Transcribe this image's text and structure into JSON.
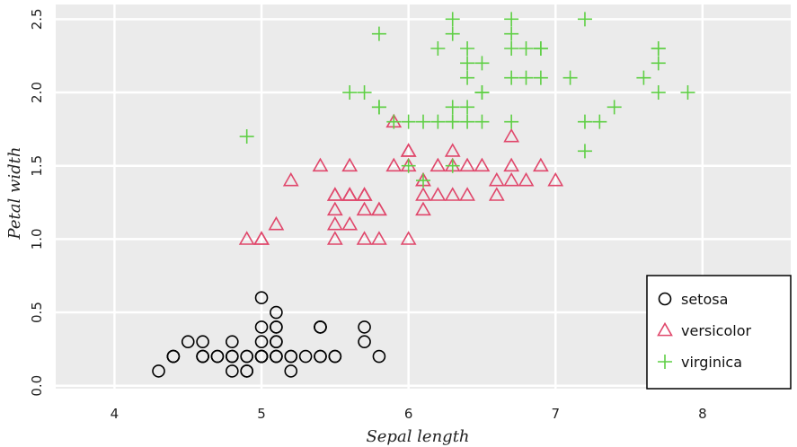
{
  "chart_data": {
    "type": "scatter",
    "title": "",
    "xlabel": "Sepal length",
    "ylabel": "Petal width",
    "xlim": [
      3.6,
      8.6
    ],
    "ylim": [
      -0.02,
      2.6
    ],
    "xticks": [
      4,
      5,
      6,
      7,
      8
    ],
    "yticks": [
      0.0,
      0.5,
      1.0,
      1.5,
      2.0,
      2.5
    ],
    "xtick_labels": [
      "4",
      "5",
      "6",
      "7",
      "8"
    ],
    "ytick_labels": [
      "0.0",
      "0.5",
      "1.0",
      "1.5",
      "2.0",
      "2.5"
    ],
    "grid": true,
    "background": "#ebebeb",
    "legend_position": "bottom-right",
    "series": [
      {
        "name": "setosa",
        "marker": "circle",
        "color": "#000000",
        "points": [
          [
            5.1,
            0.2
          ],
          [
            4.9,
            0.2
          ],
          [
            4.7,
            0.2
          ],
          [
            4.6,
            0.2
          ],
          [
            5.0,
            0.2
          ],
          [
            5.4,
            0.4
          ],
          [
            4.6,
            0.3
          ],
          [
            5.0,
            0.2
          ],
          [
            4.4,
            0.2
          ],
          [
            4.9,
            0.1
          ],
          [
            5.4,
            0.2
          ],
          [
            4.8,
            0.2
          ],
          [
            4.8,
            0.1
          ],
          [
            4.3,
            0.1
          ],
          [
            5.8,
            0.2
          ],
          [
            5.7,
            0.4
          ],
          [
            5.4,
            0.4
          ],
          [
            5.1,
            0.3
          ],
          [
            5.7,
            0.3
          ],
          [
            5.1,
            0.3
          ],
          [
            5.4,
            0.2
          ],
          [
            5.1,
            0.4
          ],
          [
            4.6,
            0.2
          ],
          [
            5.1,
            0.5
          ],
          [
            4.8,
            0.2
          ],
          [
            5.0,
            0.2
          ],
          [
            5.0,
            0.4
          ],
          [
            5.2,
            0.2
          ],
          [
            5.2,
            0.2
          ],
          [
            4.7,
            0.2
          ],
          [
            4.8,
            0.2
          ],
          [
            5.4,
            0.4
          ],
          [
            5.2,
            0.1
          ],
          [
            5.5,
            0.2
          ],
          [
            4.9,
            0.2
          ],
          [
            5.0,
            0.2
          ],
          [
            5.5,
            0.2
          ],
          [
            4.9,
            0.1
          ],
          [
            4.4,
            0.2
          ],
          [
            5.1,
            0.2
          ],
          [
            5.0,
            0.3
          ],
          [
            4.5,
            0.3
          ],
          [
            4.4,
            0.2
          ],
          [
            5.0,
            0.6
          ],
          [
            5.1,
            0.4
          ],
          [
            4.8,
            0.3
          ],
          [
            5.1,
            0.2
          ],
          [
            4.6,
            0.2
          ],
          [
            5.3,
            0.2
          ],
          [
            5.0,
            0.2
          ]
        ]
      },
      {
        "name": "versicolor",
        "marker": "triangle",
        "color": "#e0476b",
        "points": [
          [
            7.0,
            1.4
          ],
          [
            6.4,
            1.5
          ],
          [
            6.9,
            1.5
          ],
          [
            5.5,
            1.3
          ],
          [
            6.5,
            1.5
          ],
          [
            5.7,
            1.3
          ],
          [
            6.3,
            1.6
          ],
          [
            4.9,
            1.0
          ],
          [
            6.6,
            1.3
          ],
          [
            5.2,
            1.4
          ],
          [
            5.0,
            1.0
          ],
          [
            5.9,
            1.5
          ],
          [
            6.0,
            1.0
          ],
          [
            6.1,
            1.4
          ],
          [
            5.6,
            1.3
          ],
          [
            6.7,
            1.4
          ],
          [
            5.6,
            1.5
          ],
          [
            5.8,
            1.0
          ],
          [
            6.2,
            1.5
          ],
          [
            5.6,
            1.1
          ],
          [
            5.9,
            1.8
          ],
          [
            6.1,
            1.3
          ],
          [
            6.3,
            1.5
          ],
          [
            6.1,
            1.2
          ],
          [
            6.4,
            1.3
          ],
          [
            6.6,
            1.4
          ],
          [
            6.8,
            1.4
          ],
          [
            6.7,
            1.7
          ],
          [
            6.0,
            1.5
          ],
          [
            5.7,
            1.0
          ],
          [
            5.5,
            1.1
          ],
          [
            5.5,
            1.0
          ],
          [
            5.8,
            1.2
          ],
          [
            6.0,
            1.6
          ],
          [
            5.4,
            1.5
          ],
          [
            6.0,
            1.6
          ],
          [
            6.7,
            1.5
          ],
          [
            6.3,
            1.3
          ],
          [
            5.6,
            1.3
          ],
          [
            5.5,
            1.3
          ],
          [
            5.5,
            1.2
          ],
          [
            6.1,
            1.4
          ],
          [
            5.8,
            1.2
          ],
          [
            5.0,
            1.0
          ],
          [
            5.6,
            1.3
          ],
          [
            5.7,
            1.2
          ],
          [
            5.7,
            1.3
          ],
          [
            6.2,
            1.3
          ],
          [
            5.1,
            1.1
          ],
          [
            5.7,
            1.3
          ]
        ]
      },
      {
        "name": "virginica",
        "marker": "plus",
        "color": "#5fcf45",
        "points": [
          [
            6.3,
            2.5
          ],
          [
            5.8,
            1.9
          ],
          [
            7.1,
            2.1
          ],
          [
            6.3,
            1.8
          ],
          [
            6.5,
            2.2
          ],
          [
            7.6,
            2.1
          ],
          [
            4.9,
            1.7
          ],
          [
            7.3,
            1.8
          ],
          [
            6.7,
            1.8
          ],
          [
            7.2,
            2.5
          ],
          [
            6.5,
            2.0
          ],
          [
            6.4,
            1.9
          ],
          [
            6.8,
            2.1
          ],
          [
            5.7,
            2.0
          ],
          [
            5.8,
            2.4
          ],
          [
            6.4,
            2.3
          ],
          [
            6.5,
            1.8
          ],
          [
            7.7,
            2.2
          ],
          [
            7.7,
            2.3
          ],
          [
            6.0,
            1.5
          ],
          [
            6.9,
            2.3
          ],
          [
            5.6,
            2.0
          ],
          [
            7.7,
            2.0
          ],
          [
            6.3,
            1.8
          ],
          [
            6.7,
            2.1
          ],
          [
            7.2,
            1.8
          ],
          [
            6.2,
            1.8
          ],
          [
            6.1,
            1.8
          ],
          [
            6.4,
            2.1
          ],
          [
            7.2,
            1.6
          ],
          [
            7.4,
            1.9
          ],
          [
            7.9,
            2.0
          ],
          [
            6.4,
            2.2
          ],
          [
            6.3,
            1.5
          ],
          [
            6.1,
            1.4
          ],
          [
            7.7,
            2.3
          ],
          [
            6.3,
            2.4
          ],
          [
            6.4,
            1.8
          ],
          [
            6.0,
            1.8
          ],
          [
            6.9,
            2.1
          ],
          [
            6.7,
            2.4
          ],
          [
            6.9,
            2.3
          ],
          [
            5.8,
            1.9
          ],
          [
            6.8,
            2.3
          ],
          [
            6.7,
            2.5
          ],
          [
            6.7,
            2.3
          ],
          [
            6.3,
            1.9
          ],
          [
            6.5,
            2.0
          ],
          [
            6.2,
            2.3
          ],
          [
            5.9,
            1.8
          ]
        ]
      }
    ]
  }
}
